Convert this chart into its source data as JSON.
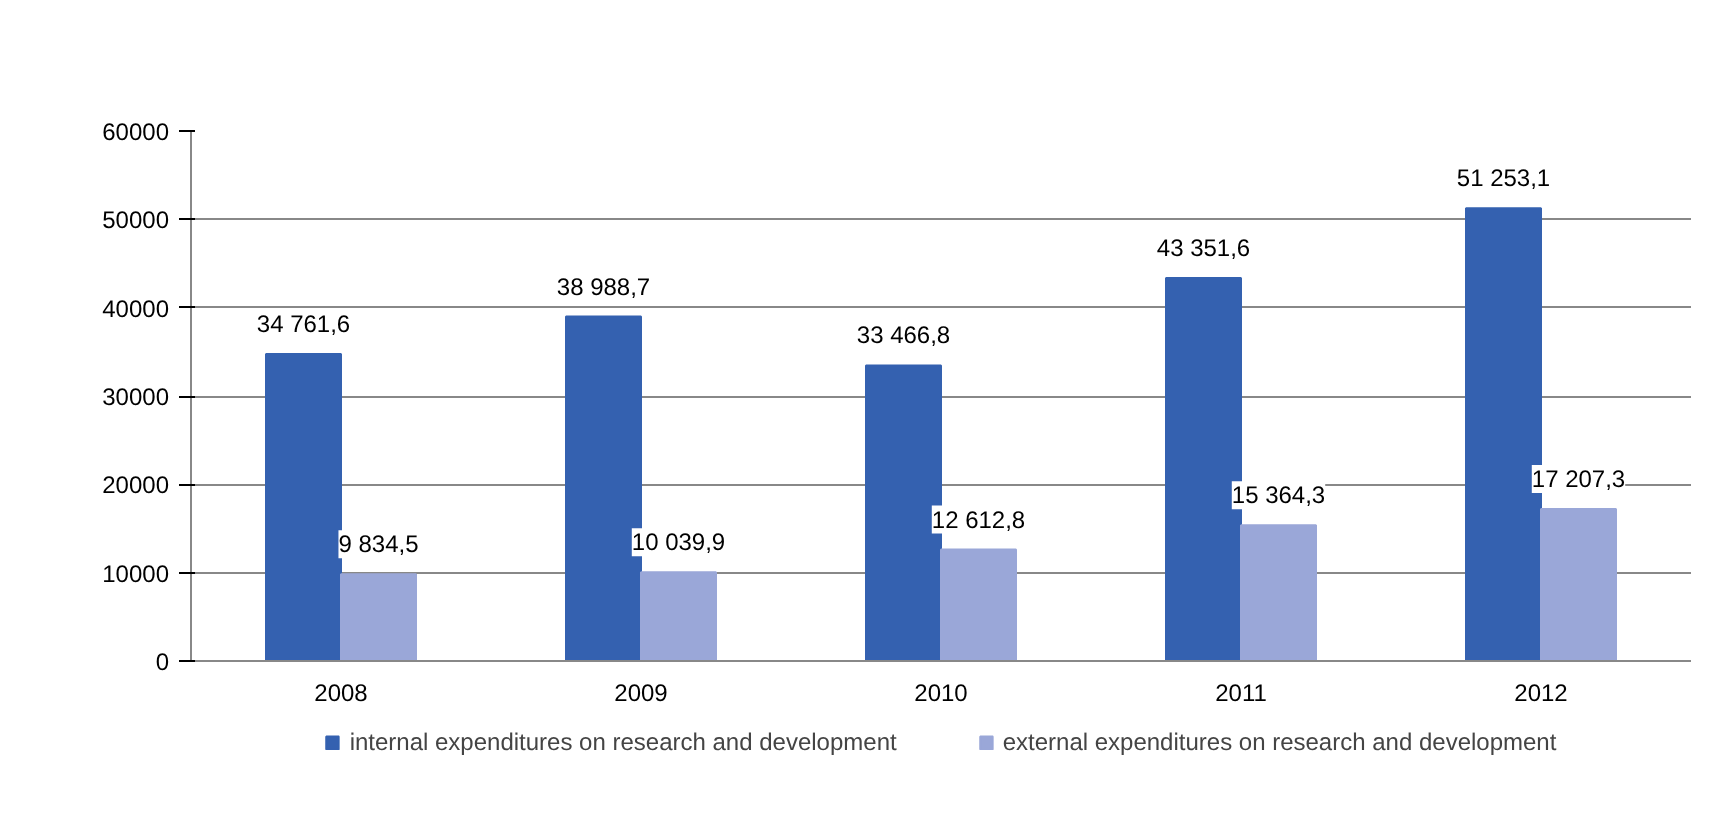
{
  "chart_data": {
    "type": "bar",
    "categories": [
      "2008",
      "2009",
      "2010",
      "2011",
      "2012"
    ],
    "series": [
      {
        "name": "internal expenditures on research and development",
        "color": "#3461b0",
        "values": [
          34761.6,
          38988.7,
          33466.8,
          43351.6,
          51253.1
        ],
        "value_labels": [
          "34 761,6",
          "38 988,7",
          "33 466,8",
          "43 351,6",
          "51 253,1"
        ]
      },
      {
        "name": "external expenditures on research and development",
        "color": "#9aa7d8",
        "values": [
          9834.5,
          10039.9,
          12612.8,
          15364.3,
          17207.3
        ],
        "value_labels": [
          "9 834,5",
          "10 039,9",
          "12 612,8",
          "15 364,3",
          "17 207,3"
        ]
      }
    ],
    "ylim": [
      0,
      60000
    ],
    "yticks": [
      0,
      10000,
      20000,
      30000,
      40000,
      50000,
      60000
    ],
    "grid": "y",
    "legend": "bottom"
  }
}
